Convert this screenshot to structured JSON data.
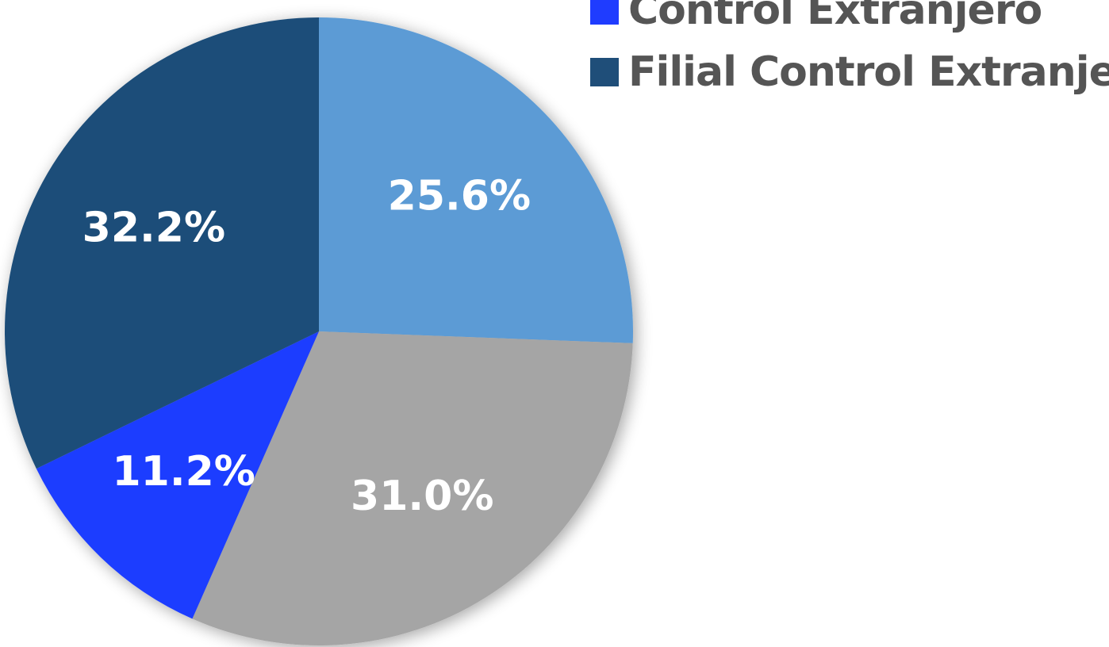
{
  "chart_data": {
    "type": "pie",
    "start_angle_deg": 0,
    "direction": "clockwise",
    "slices": [
      {
        "value": 25.6,
        "label": "25.6%",
        "color": "#5b9bd5"
      },
      {
        "value": 31.0,
        "label": "31.0%",
        "color": "#a5a5a5"
      },
      {
        "value": 11.2,
        "label": "11.2%",
        "color": "#1f3cff"
      },
      {
        "value": 32.2,
        "label": "32.2%",
        "color": "#1f4e79"
      }
    ],
    "legend": {
      "placement": "top-right",
      "entries": [
        {
          "name": "Control Extranjero",
          "color": "#1f3cff"
        },
        {
          "name": "Filial Control Extranjero",
          "color": "#1f4e79"
        }
      ]
    }
  }
}
